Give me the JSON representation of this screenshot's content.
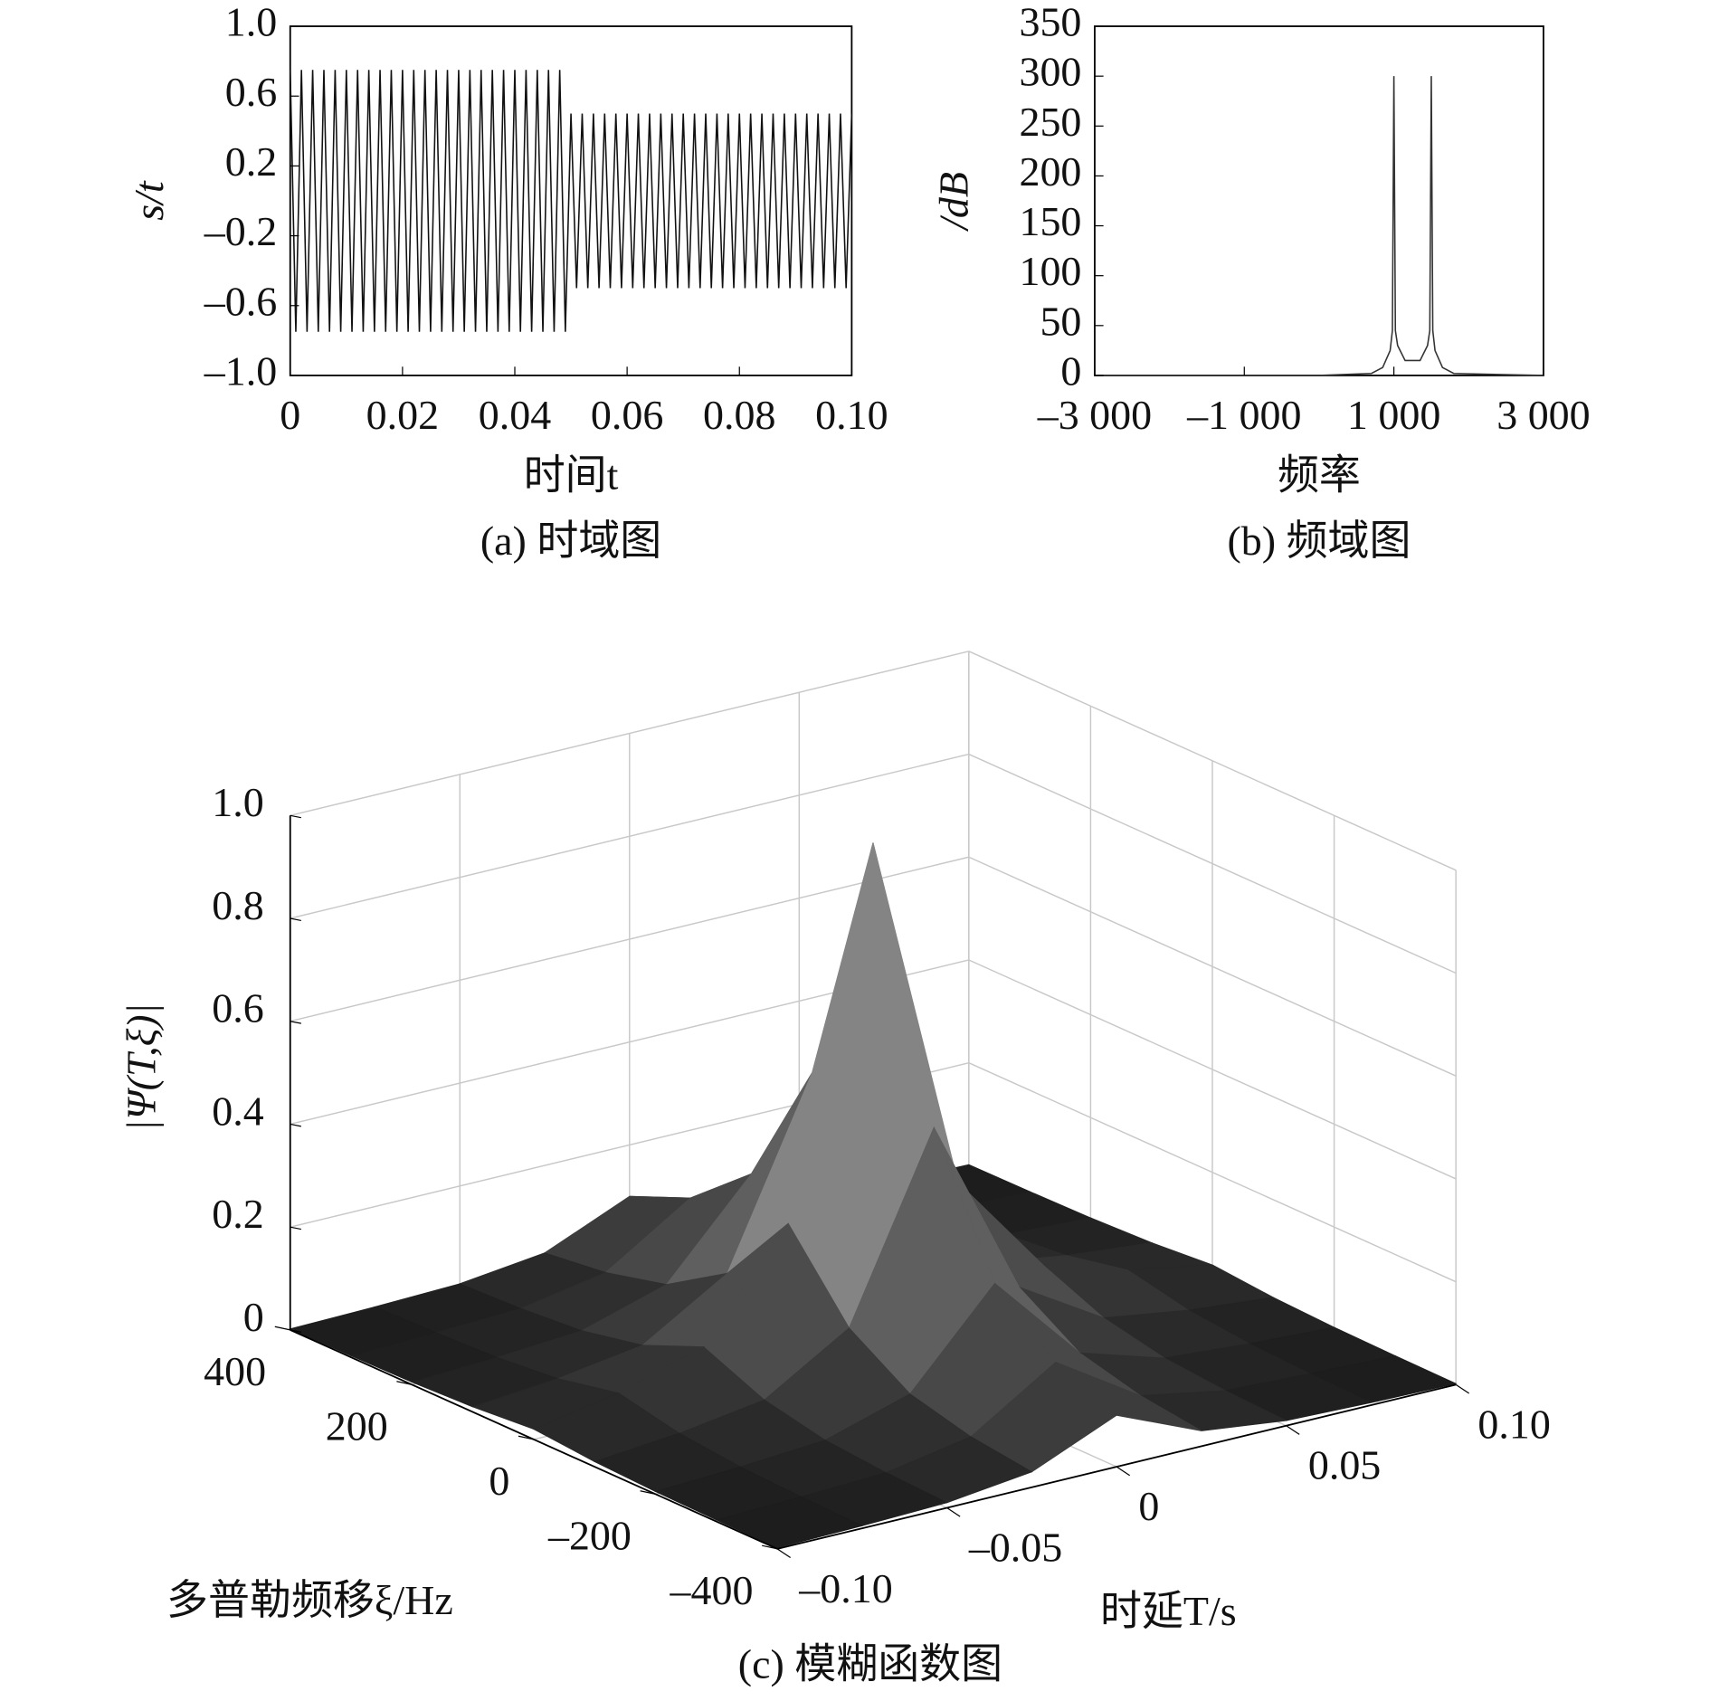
{
  "chart_data": [
    {
      "type": "line",
      "ylabel": "s/t",
      "xlabel": "时间t",
      "caption": "(a) 时域图",
      "color": "#111111",
      "xlim": [
        0,
        0.1
      ],
      "ylim": [
        -1,
        1
      ],
      "xticks": [
        0,
        0.02,
        0.04,
        0.06,
        0.08,
        {
          "value": 0.1,
          "label": "0.10"
        }
      ],
      "yticks": [
        {
          "value": 1,
          "label": "1.0"
        },
        0.6,
        0.2,
        {
          "value": -0.2,
          "label": "–0.2"
        },
        {
          "value": -0.6,
          "label": "–0.6"
        },
        {
          "value": -1,
          "label": "–1.0"
        }
      ],
      "x": [
        0,
        0.001,
        0.002,
        0.003,
        0.004,
        0.005,
        0.006,
        0.007,
        0.008,
        0.009,
        0.01,
        0.011,
        0.012,
        0.013,
        0.014,
        0.015,
        0.016,
        0.017,
        0.018,
        0.019,
        0.02,
        0.021,
        0.022,
        0.023,
        0.024,
        0.025,
        0.026,
        0.027,
        0.028,
        0.029,
        0.03,
        0.031,
        0.032,
        0.033,
        0.034,
        0.035,
        0.036,
        0.037,
        0.038,
        0.039,
        0.04,
        0.041,
        0.042,
        0.043,
        0.044,
        0.045,
        0.046,
        0.047,
        0.048,
        0.049,
        0.05,
        0.051,
        0.052,
        0.053,
        0.054,
        0.055,
        0.056,
        0.057,
        0.058,
        0.059,
        0.06,
        0.061,
        0.062,
        0.063,
        0.064,
        0.065,
        0.066,
        0.067,
        0.068,
        0.069,
        0.07,
        0.071,
        0.072,
        0.073,
        0.074,
        0.075,
        0.076,
        0.077,
        0.078,
        0.079,
        0.08,
        0.081,
        0.082,
        0.083,
        0.084,
        0.085,
        0.086,
        0.087,
        0.088,
        0.089,
        0.09,
        0.091,
        0.092,
        0.093,
        0.094,
        0.095,
        0.096,
        0.097,
        0.098,
        0.099,
        0.1
      ],
      "values": [
        0.75,
        -0.75,
        0.75,
        -0.75,
        0.75,
        -0.75,
        0.75,
        -0.75,
        0.75,
        -0.75,
        0.75,
        -0.75,
        0.75,
        -0.75,
        0.75,
        -0.75,
        0.75,
        -0.75,
        0.75,
        -0.75,
        0.75,
        -0.75,
        0.75,
        -0.75,
        0.75,
        -0.75,
        0.75,
        -0.75,
        0.75,
        -0.75,
        0.75,
        -0.75,
        0.75,
        -0.75,
        0.75,
        -0.75,
        0.75,
        -0.75,
        0.75,
        -0.75,
        0.75,
        -0.75,
        0.75,
        -0.75,
        0.75,
        -0.75,
        0.75,
        -0.75,
        0.75,
        -0.75,
        0.5,
        -0.5,
        0.5,
        -0.5,
        0.5,
        -0.5,
        0.5,
        -0.5,
        0.5,
        -0.5,
        0.5,
        -0.5,
        0.5,
        -0.5,
        0.5,
        -0.5,
        0.5,
        -0.5,
        0.5,
        -0.5,
        0.5,
        -0.5,
        0.5,
        -0.5,
        0.5,
        -0.5,
        0.5,
        -0.5,
        0.5,
        -0.5,
        0.5,
        -0.5,
        0.5,
        -0.5,
        0.5,
        -0.5,
        0.5,
        -0.5,
        0.5,
        -0.5,
        0.5,
        -0.5,
        0.5,
        -0.5,
        0.5,
        -0.5,
        0.5,
        -0.5,
        0.5,
        -0.5,
        0.5
      ]
    },
    {
      "type": "line",
      "ylabel": "/dB",
      "xlabel": "频率",
      "caption": "(b) 频域图",
      "color": "#333333",
      "xlim": [
        -3000,
        3000
      ],
      "ylim": [
        0,
        350
      ],
      "xticks": [
        {
          "value": -3000,
          "label": "–3 000"
        },
        {
          "value": -1000,
          "label": "–1 000"
        },
        {
          "value": 1000,
          "label": "1 000"
        },
        {
          "value": 3000,
          "label": "3 000"
        }
      ],
      "yticks": [
        0,
        50,
        100,
        150,
        200,
        250,
        300,
        350
      ],
      "x": [
        -3000,
        0,
        700,
        850,
        950,
        980,
        1000,
        1020,
        1050,
        1150,
        1250,
        1350,
        1450,
        1480,
        1500,
        1520,
        1550,
        1650,
        1800,
        3000
      ],
      "values": [
        0,
        0,
        2,
        8,
        25,
        45,
        300,
        45,
        30,
        15,
        15,
        15,
        30,
        45,
        300,
        45,
        25,
        8,
        2,
        0
      ]
    },
    {
      "type": "surface",
      "zlabel": "|Ψ(T,ξ)|",
      "ylabel": "多普勒频移ξ/Hz",
      "xlabel": "时延T/s",
      "caption": "(c) 模糊函数图",
      "xlim": [
        -0.1,
        0.1
      ],
      "ylim": [
        -400,
        400
      ],
      "zlim": [
        0,
        1
      ],
      "xticks": [
        {
          "value": -0.1,
          "label": "–0.10"
        },
        {
          "value": -0.05,
          "label": "–0.05"
        },
        0,
        0.05,
        {
          "value": 0.1,
          "label": "0.10"
        }
      ],
      "yticks": [
        {
          "value": -400,
          "label": "–400"
        },
        {
          "value": -200,
          "label": "–200"
        },
        0,
        200,
        400
      ],
      "zticks": [
        0,
        0.2,
        0.4,
        0.6,
        0.8,
        {
          "value": 1,
          "label": "1.0"
        }
      ],
      "grid": true,
      "x": [
        -0.1,
        -0.075,
        -0.05,
        -0.025,
        0,
        0.025,
        0.05,
        0.075,
        0.1
      ],
      "y": [
        -400,
        -300,
        -200,
        -100,
        0,
        100,
        200,
        300,
        400
      ],
      "z": [
        [
          0.002,
          0.005,
          0.01,
          0.03,
          0.1,
          0.03,
          0.01,
          0.005,
          0.002
        ],
        [
          0.003,
          0.008,
          0.015,
          0.045,
          0.15,
          0.045,
          0.015,
          0.008,
          0.003
        ],
        [
          0.005,
          0.013,
          0.025,
          0.075,
          0.25,
          0.075,
          0.025,
          0.013,
          0.005
        ],
        [
          0.01,
          0.025,
          0.05,
          0.15,
          0.5,
          0.15,
          0.05,
          0.025,
          0.01
        ],
        [
          0.02,
          0.05,
          0.1,
          0.3,
          1.0,
          0.3,
          0.1,
          0.05,
          0.02
        ],
        [
          0.01,
          0.025,
          0.05,
          0.15,
          0.5,
          0.15,
          0.05,
          0.025,
          0.01
        ],
        [
          0.005,
          0.013,
          0.025,
          0.075,
          0.25,
          0.075,
          0.025,
          0.013,
          0.005
        ],
        [
          0.003,
          0.008,
          0.015,
          0.045,
          0.15,
          0.045,
          0.015,
          0.008,
          0.003
        ],
        [
          0.002,
          0.005,
          0.01,
          0.03,
          0.1,
          0.03,
          0.01,
          0.005,
          0.002
        ]
      ]
    }
  ]
}
